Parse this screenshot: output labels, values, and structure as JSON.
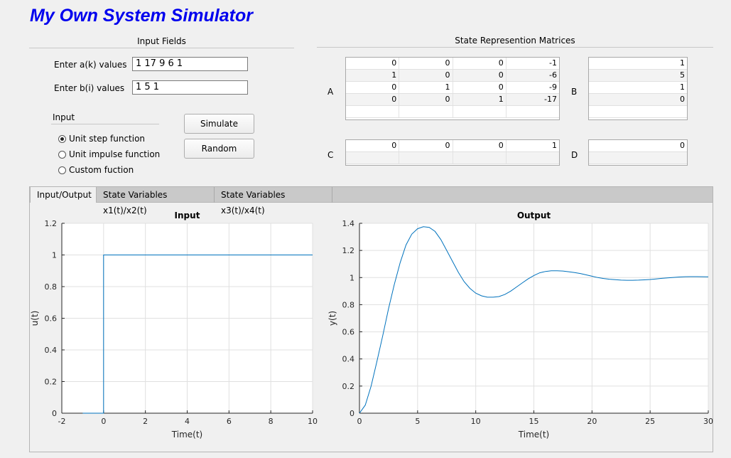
{
  "app": {
    "title": "My Own System Simulator"
  },
  "input_fields": {
    "title": "Input Fields",
    "a_label": "Enter a(k)  values",
    "a_value": "1 17 9 6 1",
    "b_label": "Enter b(i)  values",
    "b_value": "1 5 1",
    "input_group_title": "Input",
    "radio_options": [
      "Unit step function",
      "Unit impulse function",
      "Custom fuction"
    ],
    "selected_option": "Unit step function",
    "simulate_label": "Simulate",
    "random_label": "Random"
  },
  "matrices": {
    "title": "State Represention Matrices",
    "A_label": "A",
    "A": [
      [
        "0",
        "0",
        "0",
        "-1"
      ],
      [
        "1",
        "0",
        "0",
        "-6"
      ],
      [
        "0",
        "1",
        "0",
        "-9"
      ],
      [
        "0",
        "0",
        "1",
        "-17"
      ]
    ],
    "B_label": "B",
    "B": [
      [
        "1"
      ],
      [
        "5"
      ],
      [
        "1"
      ],
      [
        "0"
      ]
    ],
    "C_label": "C",
    "C": [
      [
        "0",
        "0",
        "0",
        "1"
      ]
    ],
    "D_label": "D",
    "D": [
      [
        "0"
      ]
    ]
  },
  "tabs": [
    {
      "label": "Input/Output",
      "active": true
    },
    {
      "label": "State Variables x1(t)/x2(t)",
      "active": false
    },
    {
      "label": "State Variables x3(t)/x4(t)",
      "active": false
    }
  ],
  "chart_data": [
    {
      "type": "line",
      "title": "Input",
      "xlabel": "Time(t)",
      "ylabel": "u(t)",
      "xlim": [
        -2,
        10
      ],
      "ylim": [
        0,
        1.2
      ],
      "xticks": [
        -2,
        0,
        2,
        4,
        6,
        8,
        10
      ],
      "yticks": [
        0,
        0.2,
        0.4,
        0.6,
        0.8,
        1,
        1.2
      ],
      "grid": true,
      "color": "#0072bd",
      "series": [
        {
          "x": [
            -1,
            0,
            0,
            10
          ],
          "y": [
            0,
            0,
            1,
            1
          ]
        }
      ]
    },
    {
      "type": "line",
      "title": "Output",
      "xlabel": "Time(t)",
      "ylabel": "y(t)",
      "xlim": [
        0,
        30
      ],
      "ylim": [
        0,
        1.4
      ],
      "xticks": [
        0,
        5,
        10,
        15,
        20,
        25,
        30
      ],
      "yticks": [
        0,
        0.2,
        0.4,
        0.6,
        0.8,
        1,
        1.2,
        1.4
      ],
      "grid": true,
      "color": "#0072bd",
      "series": [
        {
          "x": [
            0,
            0.5,
            1,
            1.5,
            2,
            2.5,
            3,
            3.5,
            4,
            4.5,
            5,
            5.5,
            6,
            6.5,
            7,
            7.5,
            8,
            8.5,
            9,
            9.5,
            10,
            10.5,
            11,
            11.5,
            12,
            12.5,
            13,
            13.5,
            14,
            14.5,
            15,
            15.5,
            16,
            16.5,
            17,
            17.5,
            18,
            18.5,
            19,
            19.5,
            20,
            20.5,
            21,
            21.5,
            22,
            22.5,
            23,
            23.5,
            24,
            24.5,
            25,
            25.5,
            26,
            26.5,
            27,
            27.5,
            28,
            28.5,
            29,
            29.5,
            30
          ],
          "y": [
            0,
            0.06,
            0.2,
            0.38,
            0.57,
            0.77,
            0.95,
            1.11,
            1.24,
            1.32,
            1.36,
            1.375,
            1.37,
            1.34,
            1.28,
            1.2,
            1.12,
            1.04,
            0.97,
            0.92,
            0.885,
            0.865,
            0.855,
            0.855,
            0.86,
            0.875,
            0.9,
            0.93,
            0.96,
            0.99,
            1.015,
            1.035,
            1.045,
            1.05,
            1.05,
            1.048,
            1.043,
            1.037,
            1.03,
            1.02,
            1.01,
            1.0,
            0.993,
            0.988,
            0.984,
            0.981,
            0.98,
            0.98,
            0.981,
            0.983,
            0.986,
            0.99,
            0.994,
            0.998,
            1.001,
            1.004,
            1.006,
            1.007,
            1.007,
            1.006,
            1.005
          ]
        }
      ]
    }
  ]
}
